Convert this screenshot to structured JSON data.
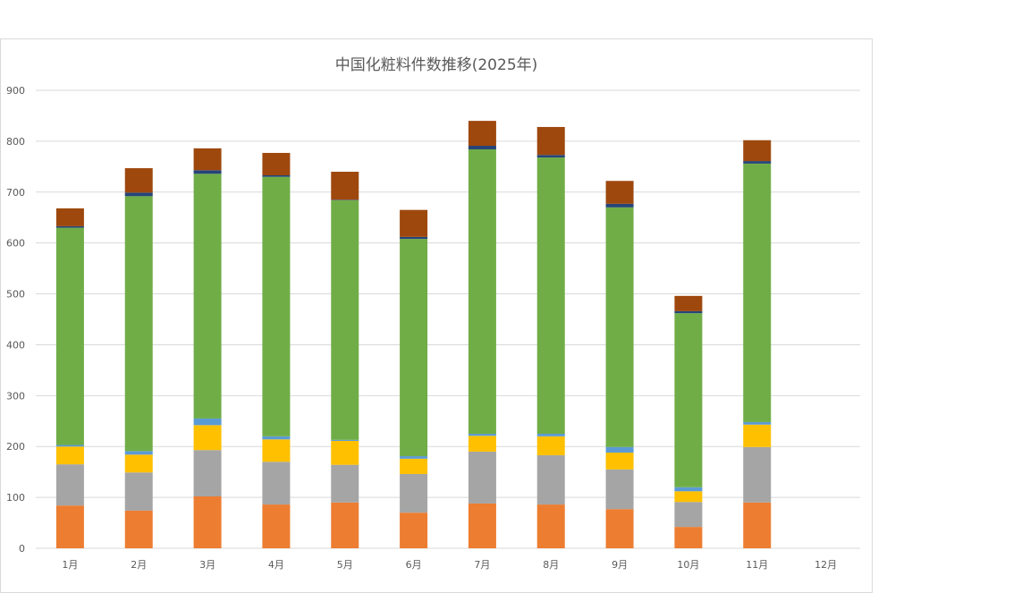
{
  "chart_data": {
    "type": "bar",
    "stacked": true,
    "title": "中国化粧料件数推移(2025年)",
    "xlabel": "",
    "ylabel": "",
    "ylim": [
      0,
      900
    ],
    "yticks": [
      0,
      100,
      200,
      300,
      400,
      500,
      600,
      700,
      800,
      900
    ],
    "grid": true,
    "legend": "none",
    "categories": [
      "1月",
      "2月",
      "3月",
      "4月",
      "5月",
      "6月",
      "7月",
      "8月",
      "9月",
      "10月",
      "11月",
      "12月"
    ],
    "series": [
      {
        "color": "#ed7d31",
        "values": [
          84,
          74,
          102,
          86,
          90,
          70,
          88,
          86,
          77,
          42,
          90,
          null
        ]
      },
      {
        "color": "#a5a5a5",
        "values": [
          81,
          75,
          91,
          84,
          74,
          76,
          102,
          97,
          78,
          49,
          109,
          null
        ]
      },
      {
        "color": "#ffc000",
        "values": [
          35,
          35,
          49,
          44,
          47,
          30,
          31,
          37,
          33,
          21,
          44,
          null
        ]
      },
      {
        "color": "#5b9bd5",
        "values": [
          3,
          7,
          13,
          6,
          2,
          5,
          4,
          5,
          11,
          8,
          5,
          null
        ]
      },
      {
        "color": "#70ad47",
        "values": [
          427,
          501,
          481,
          510,
          471,
          427,
          559,
          543,
          471,
          342,
          508,
          null
        ]
      },
      {
        "color": "#264478",
        "values": [
          3,
          7,
          7,
          3,
          1,
          4,
          7,
          5,
          7,
          4,
          5,
          null
        ]
      },
      {
        "color": "#9e480e",
        "values": [
          35,
          48,
          43,
          44,
          55,
          53,
          49,
          55,
          45,
          30,
          41,
          null
        ]
      }
    ]
  }
}
